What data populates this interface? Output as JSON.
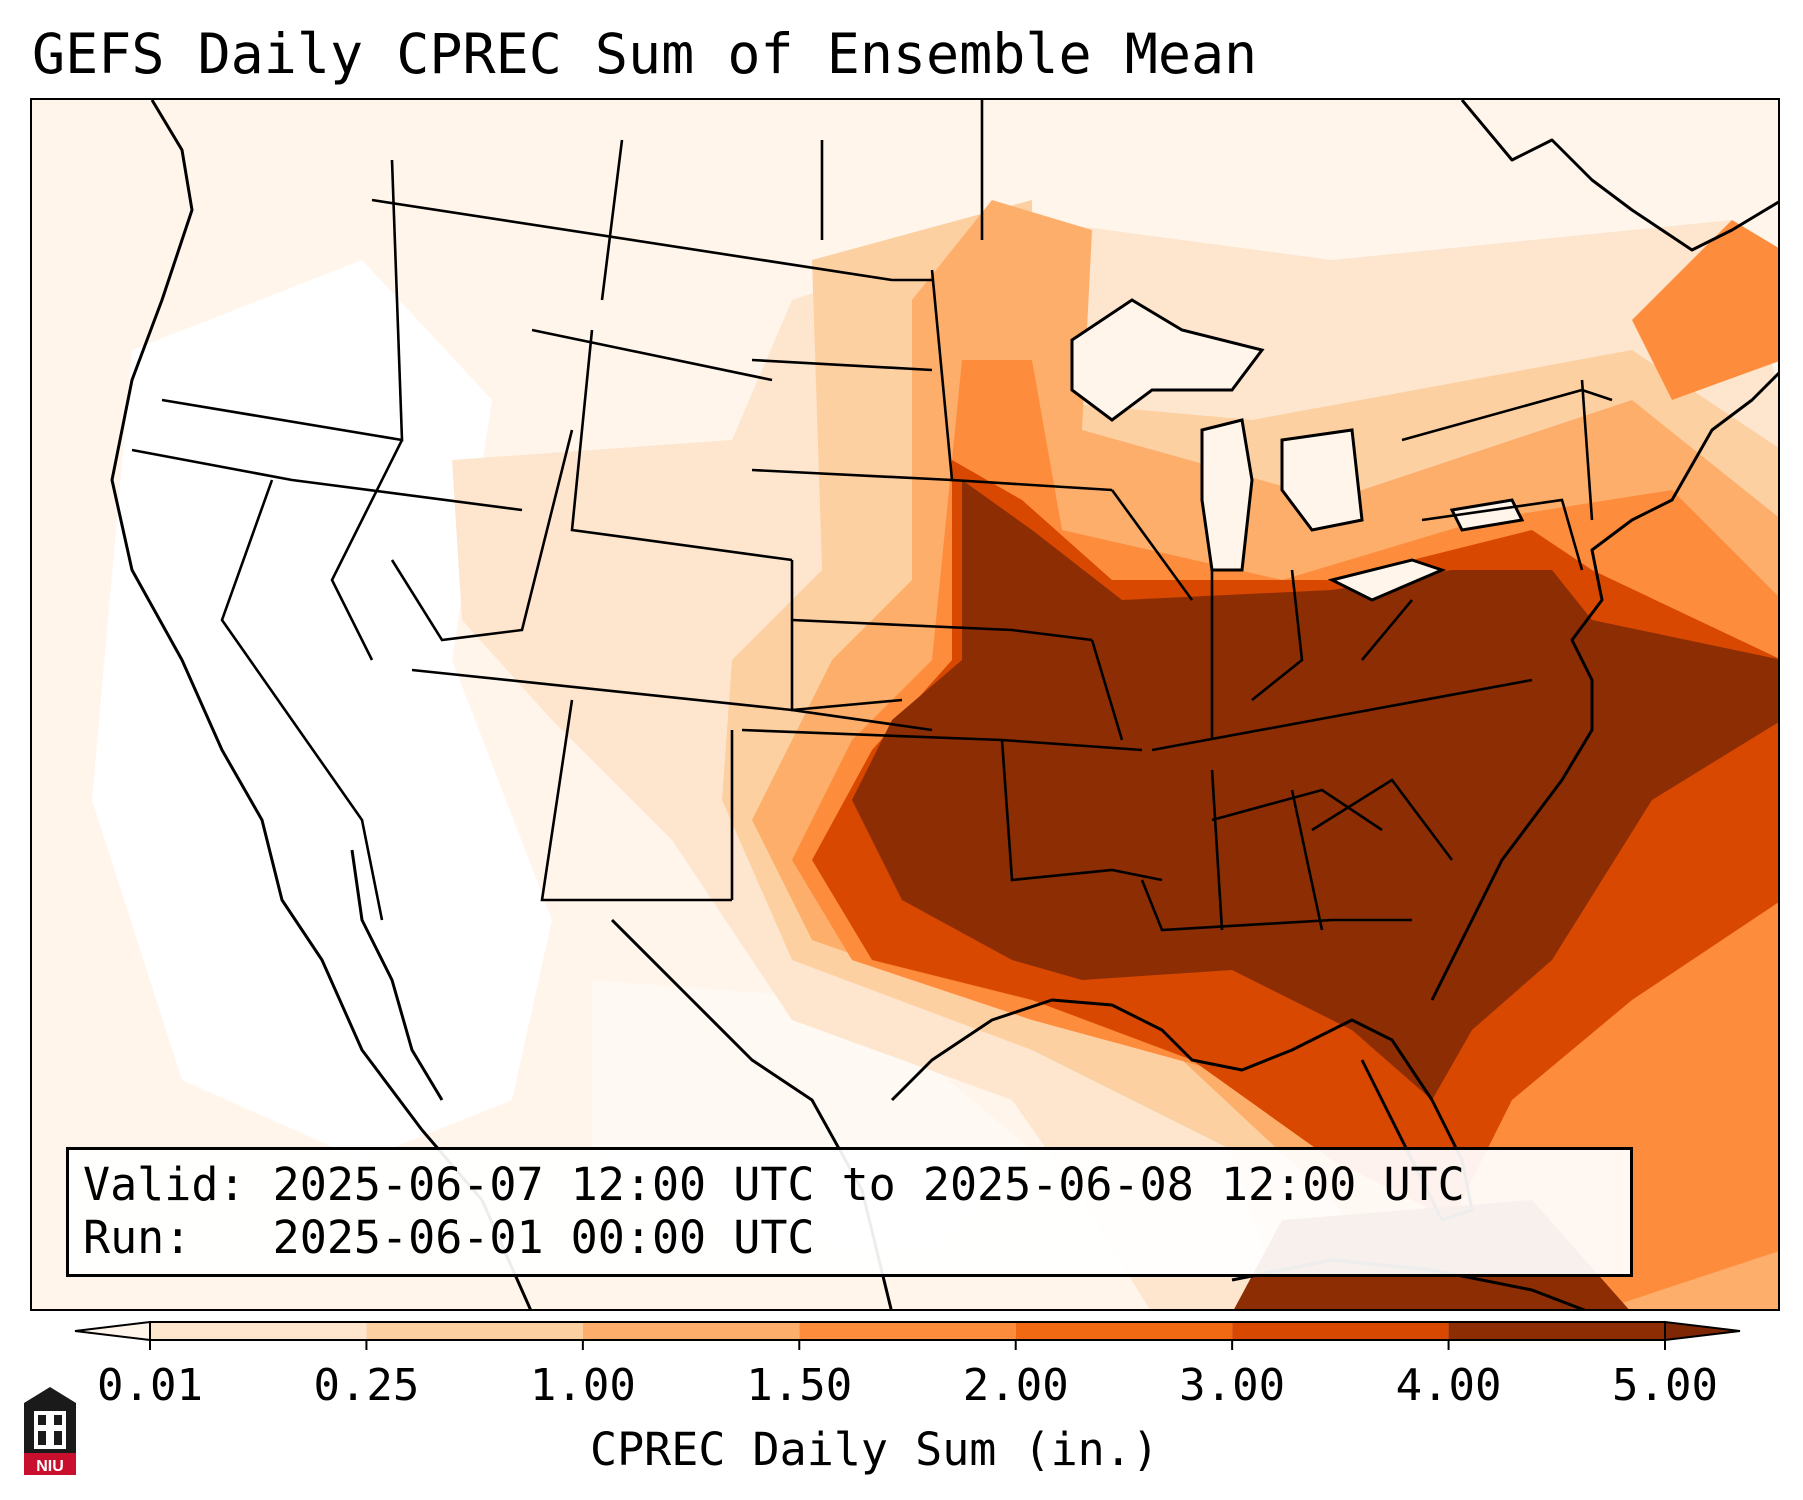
{
  "title": "GEFS Daily CPREC Sum of Ensemble Mean",
  "info": {
    "valid_label": "Valid:",
    "valid_text": "2025-06-07 12:00 UTC to 2025-06-08 12:00 UTC",
    "run_label": "Run:",
    "run_text": "2025-06-01 00:00 UTC"
  },
  "colorbar": {
    "label": "CPREC Daily Sum (in.)",
    "ticks": [
      "0.01",
      "0.25",
      "1.00",
      "1.50",
      "2.00",
      "3.00",
      "4.00",
      "5.00"
    ],
    "colors": [
      "#fee6ce",
      "#fdd0a2",
      "#fdae6b",
      "#fd8d3c",
      "#f16913",
      "#d94801",
      "#8c2d04"
    ],
    "under_color": "#fff5eb",
    "over_color": "#7f2704"
  },
  "map": {
    "region": "Contiguous United States",
    "background_color": "#fff5eb",
    "line_color": "#000000"
  },
  "logo": {
    "text": "NIU",
    "icon": "university-tower-icon"
  }
}
